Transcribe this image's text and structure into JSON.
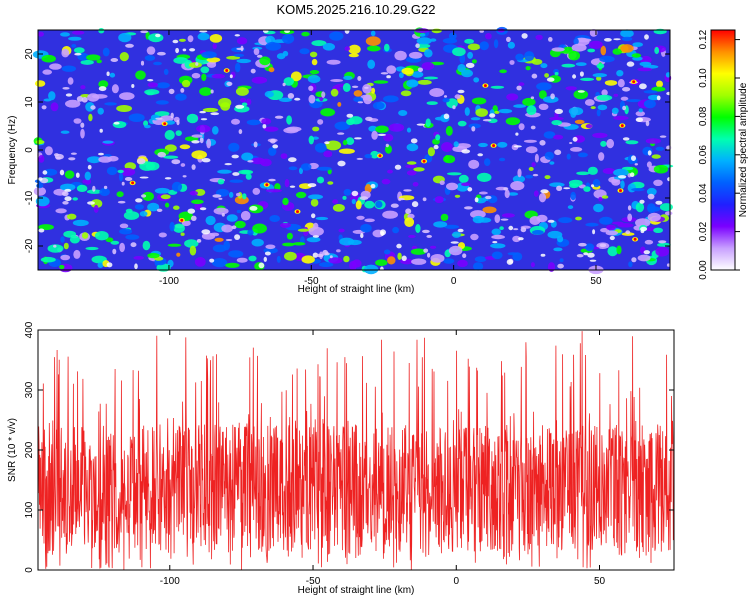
{
  "chart_data": [
    {
      "type": "heatmap",
      "title": "KOM5.2025.216.10.29.G22",
      "xlabel": "Height of straight line (km)",
      "ylabel": "Frequency (Hz)",
      "xlim": [
        -146,
        76
      ],
      "ylim": [
        -25,
        25
      ],
      "x_ticks": [
        -100,
        -50,
        0,
        50
      ],
      "y_ticks": [
        -20,
        -10,
        0,
        10,
        20
      ],
      "colorbar": {
        "label": "Normalized spectral amplitude",
        "range": [
          0,
          0.125
        ],
        "ticks": [
          "0.00",
          "0.02",
          "0.04",
          "0.06",
          "0.08",
          "0.10",
          "0.12"
        ],
        "colors": [
          "#ffffff",
          "#c8a0ff",
          "#7a00ff",
          "#2020ff",
          "#0060ff",
          "#00b0ff",
          "#00ffb0",
          "#00ff00",
          "#a0ff00",
          "#ffff00",
          "#ff9000",
          "#ff0000"
        ]
      },
      "grid": false
    },
    {
      "type": "line",
      "xlabel": "Height of straight line (km)",
      "ylabel": "SNR (10 * v/v)",
      "xlim": [
        -146,
        76
      ],
      "ylim": [
        0,
        400
      ],
      "x_ticks": [
        -100,
        -50,
        0,
        50
      ],
      "y_ticks": [
        0,
        100,
        200,
        300,
        400
      ],
      "series": [
        {
          "color": "#ee2222",
          "baseline_mean": 120,
          "typical_range": [
            30,
            280
          ],
          "peak_max": 400
        }
      ],
      "grid": false
    }
  ]
}
